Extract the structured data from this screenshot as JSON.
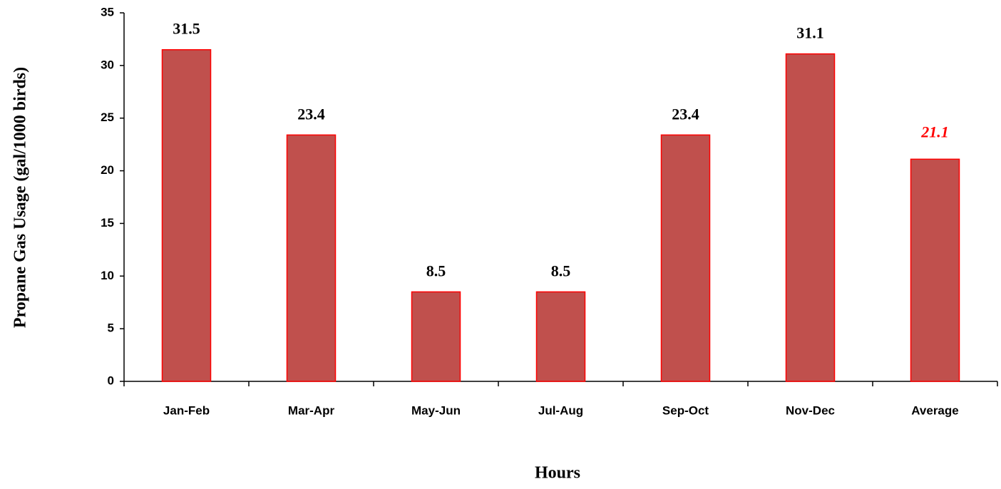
{
  "chart_data": {
    "type": "bar",
    "y_label": "Propane Gas Usage (gal/1000 birds)",
    "x_label": "Hours",
    "categories": [
      "Jan-Feb",
      "Mar-Apr",
      "May-Jun",
      "Jul-Aug",
      "Sep-Oct",
      "Nov-Dec",
      "Average"
    ],
    "values": [
      31.5,
      23.4,
      8.5,
      8.5,
      23.4,
      31.1,
      21.1
    ],
    "color": "#c0504d",
    "edge_color": "#ff0000",
    "value_label_colors": [
      "#000000",
      "#000000",
      "#000000",
      "#000000",
      "#000000",
      "#000000",
      "#ff0000"
    ],
    "ylim": [
      0,
      35
    ],
    "yticks": [
      0,
      5,
      10,
      15,
      20,
      25,
      30,
      35
    ],
    "grid": false
  }
}
